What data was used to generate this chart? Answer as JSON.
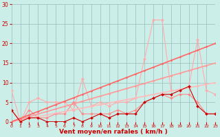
{
  "x": [
    0,
    1,
    2,
    3,
    4,
    5,
    6,
    7,
    8,
    9,
    10,
    11,
    12,
    13,
    14,
    15,
    16,
    17,
    18,
    19,
    20,
    21,
    22,
    23
  ],
  "series": [
    {
      "label": "s1_light_pink",
      "color": "#ffaaaa",
      "lw": 0.8,
      "marker": "D",
      "markersize": 2.0,
      "values": [
        8,
        0,
        5,
        6,
        5,
        5,
        5,
        3,
        11,
        4,
        5,
        4,
        5,
        5,
        6,
        16,
        26,
        26,
        8,
        8,
        9,
        21,
        8,
        7
      ]
    },
    {
      "label": "s2_med_pink",
      "color": "#ff8888",
      "lw": 0.8,
      "marker": "D",
      "markersize": 2.0,
      "values": [
        3,
        0,
        3,
        1,
        1,
        2,
        2,
        5,
        2,
        2,
        2,
        2,
        3,
        2,
        3,
        5,
        6,
        7,
        6,
        7,
        7,
        5,
        2,
        2
      ]
    },
    {
      "label": "s3_linear_lightest",
      "color": "#ffbbbb",
      "lw": 1.2,
      "marker": "D",
      "markersize": 1.5,
      "values": [
        0,
        0.43,
        0.87,
        1.3,
        1.74,
        2.17,
        2.61,
        3.04,
        3.48,
        3.91,
        4.35,
        4.78,
        5.22,
        5.65,
        6.09,
        6.52,
        6.96,
        7.39,
        7.83,
        8.26,
        8.7,
        9.13,
        9.57,
        10.0
      ]
    },
    {
      "label": "s4_linear_light",
      "color": "#ff9999",
      "lw": 1.2,
      "marker": "D",
      "markersize": 1.5,
      "values": [
        0,
        0.65,
        1.3,
        1.96,
        2.61,
        3.26,
        3.91,
        4.57,
        5.22,
        5.87,
        6.52,
        7.17,
        7.83,
        8.48,
        9.13,
        9.78,
        10.43,
        11.09,
        11.74,
        12.39,
        13.04,
        13.7,
        14.35,
        15.0
      ]
    },
    {
      "label": "s5_linear_mid",
      "color": "#ff6666",
      "lw": 1.2,
      "marker": "D",
      "markersize": 1.5,
      "values": [
        0,
        0.87,
        1.74,
        2.61,
        3.48,
        4.35,
        5.22,
        6.09,
        6.96,
        7.83,
        8.7,
        9.57,
        10.43,
        11.3,
        12.17,
        13.04,
        13.91,
        14.78,
        15.65,
        16.52,
        17.39,
        18.26,
        19.13,
        20.0
      ]
    },
    {
      "label": "s6_dark_red_marker",
      "color": "#cc0000",
      "lw": 0.8,
      "marker": "D",
      "markersize": 2.0,
      "values": [
        3,
        0,
        1,
        1,
        0,
        0,
        0,
        1,
        0,
        1,
        2,
        1,
        2,
        2,
        2,
        5,
        6,
        7,
        7,
        8,
        9,
        4,
        2,
        2
      ]
    }
  ],
  "xlabel": "Vent moyen/en rafales ( km/h )",
  "xlim": [
    0,
    23
  ],
  "ylim": [
    0,
    30
  ],
  "yticks": [
    0,
    5,
    10,
    15,
    20,
    25,
    30
  ],
  "xticks": [
    0,
    1,
    2,
    3,
    4,
    5,
    6,
    7,
    8,
    9,
    10,
    11,
    12,
    13,
    14,
    15,
    16,
    17,
    18,
    19,
    20,
    21,
    22,
    23
  ],
  "bg_color": "#cceee8",
  "grid_color": "#99bbbb"
}
